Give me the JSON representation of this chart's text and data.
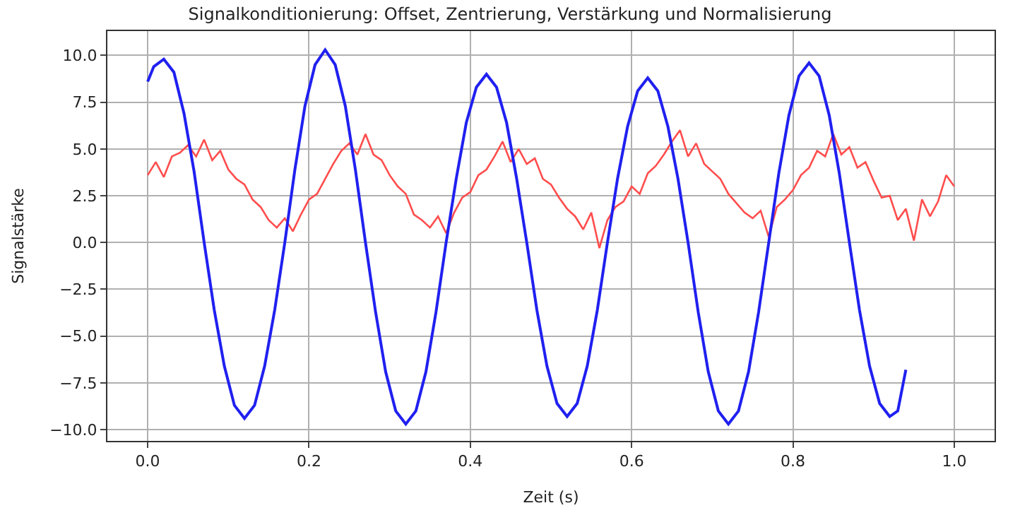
{
  "chart_data": {
    "type": "line",
    "title": "Signalkonditionierung: Offset, Zentrierung, Verstärkung und Normalisierung",
    "xlabel": "Zeit (s)",
    "ylabel": "Signalstärke",
    "xlim": [
      -0.05,
      1.05
    ],
    "ylim": [
      -10.6,
      11.3
    ],
    "xticks": [
      {
        "value": 0,
        "label": "0.0"
      },
      {
        "value": 0.2,
        "label": "0.2"
      },
      {
        "value": 0.4,
        "label": "0.4"
      },
      {
        "value": 0.6,
        "label": "0.6"
      },
      {
        "value": 0.8,
        "label": "0.8"
      },
      {
        "value": 1.0,
        "label": "1.0"
      }
    ],
    "yticks": [
      {
        "value": -10,
        "label": "−10.0"
      },
      {
        "value": -7.5,
        "label": "−7.5"
      },
      {
        "value": -5,
        "label": "−5.0"
      },
      {
        "value": -2.5,
        "label": "−2.5"
      },
      {
        "value": 0,
        "label": "0.0"
      },
      {
        "value": 2.5,
        "label": "2.5"
      },
      {
        "value": 5,
        "label": "5.0"
      },
      {
        "value": 7.5,
        "label": "7.5"
      },
      {
        "value": 10,
        "label": "10.0"
      }
    ],
    "grid": true,
    "marker": "none",
    "line_style": "solid",
    "series": [
      {
        "color": "#ff4d4d",
        "x": [
          0.0,
          0.01,
          0.02,
          0.03,
          0.04,
          0.05,
          0.06,
          0.07,
          0.08,
          0.09,
          0.1,
          0.11,
          0.12,
          0.13,
          0.14,
          0.15,
          0.16,
          0.17,
          0.18,
          0.19,
          0.2,
          0.21,
          0.22,
          0.23,
          0.24,
          0.25,
          0.26,
          0.27,
          0.28,
          0.29,
          0.3,
          0.31,
          0.32,
          0.33,
          0.34,
          0.35,
          0.36,
          0.37,
          0.38,
          0.39,
          0.4,
          0.41,
          0.42,
          0.43,
          0.44,
          0.45,
          0.46,
          0.47,
          0.48,
          0.49,
          0.5,
          0.51,
          0.52,
          0.53,
          0.54,
          0.55,
          0.56,
          0.57,
          0.58,
          0.59,
          0.6,
          0.61,
          0.62,
          0.63,
          0.64,
          0.65,
          0.66,
          0.67,
          0.68,
          0.69,
          0.7,
          0.71,
          0.72,
          0.73,
          0.74,
          0.75,
          0.76,
          0.77,
          0.78,
          0.79,
          0.8,
          0.81,
          0.82,
          0.83,
          0.84,
          0.85,
          0.86,
          0.87,
          0.88,
          0.89,
          0.9,
          0.91,
          0.92,
          0.93,
          0.94,
          0.95,
          0.96,
          0.97,
          0.98,
          0.99,
          1.0
        ],
        "values": [
          3.6,
          4.3,
          3.5,
          4.6,
          4.8,
          5.2,
          4.6,
          5.5,
          4.4,
          4.9,
          3.9,
          3.4,
          3.1,
          2.3,
          1.9,
          1.2,
          0.8,
          1.3,
          0.6,
          1.5,
          2.3,
          2.6,
          3.4,
          4.2,
          4.9,
          5.3,
          4.7,
          5.8,
          4.7,
          4.4,
          3.6,
          3.0,
          2.6,
          1.5,
          1.2,
          0.8,
          1.4,
          0.5,
          1.6,
          2.4,
          2.7,
          3.6,
          3.9,
          4.6,
          5.4,
          4.3,
          5.0,
          4.2,
          4.5,
          3.4,
          3.1,
          2.4,
          1.8,
          1.4,
          0.7,
          1.6,
          -0.3,
          1.2,
          1.9,
          2.2,
          3.0,
          2.6,
          3.7,
          4.1,
          4.7,
          5.4,
          6.0,
          4.6,
          5.3,
          4.2,
          3.8,
          3.4,
          2.6,
          2.1,
          1.6,
          1.3,
          1.7,
          0.3,
          1.9,
          2.3,
          2.8,
          3.6,
          4.0,
          4.9,
          4.6,
          5.8,
          4.7,
          5.1,
          4.0,
          4.3,
          3.3,
          2.4,
          2.5,
          1.2,
          1.8,
          0.1,
          2.3,
          1.4,
          2.2,
          3.6,
          3.0
        ]
      },
      {
        "color": "#2020f0",
        "x": [
          0,
          0.0075,
          0.02,
          0.0325,
          0.045,
          0.0575,
          0.07,
          0.0825,
          0.095,
          0.1075,
          0.12,
          0.1325,
          0.145,
          0.1575,
          0.17,
          0.1825,
          0.195,
          0.2075,
          0.22,
          0.2325,
          0.245,
          0.2575,
          0.27,
          0.2825,
          0.295,
          0.3075,
          0.32,
          0.3325,
          0.345,
          0.3575,
          0.37,
          0.3825,
          0.395,
          0.4075,
          0.42,
          0.4325,
          0.445,
          0.4575,
          0.47,
          0.4825,
          0.495,
          0.5075,
          0.52,
          0.5325,
          0.545,
          0.5575,
          0.57,
          0.5825,
          0.595,
          0.6075,
          0.62,
          0.6325,
          0.645,
          0.6575,
          0.67,
          0.6825,
          0.695,
          0.7075,
          0.72,
          0.7325,
          0.745,
          0.7575,
          0.77,
          0.7825,
          0.795,
          0.8075,
          0.82,
          0.8325,
          0.845,
          0.8575,
          0.87,
          0.8825,
          0.895,
          0.9075,
          0.92,
          0.93,
          0.94
        ],
        "values": [
          8.6,
          9.4,
          9.8,
          9.1,
          6.9,
          3.8,
          0.0,
          -3.6,
          -6.6,
          -8.7,
          -9.4,
          -8.7,
          -6.6,
          -3.6,
          0.0,
          3.9,
          7.3,
          9.5,
          10.3,
          9.5,
          7.3,
          3.9,
          0.0,
          -3.7,
          -6.9,
          -9.0,
          -9.7,
          -9.0,
          -6.9,
          -3.7,
          0.0,
          3.4,
          6.4,
          8.3,
          9.0,
          8.3,
          6.4,
          3.4,
          0.0,
          -3.6,
          -6.6,
          -8.6,
          -9.3,
          -8.6,
          -6.6,
          -3.6,
          0.0,
          3.4,
          6.2,
          8.1,
          8.8,
          8.1,
          6.2,
          3.4,
          0.0,
          -3.7,
          -6.9,
          -9.0,
          -9.7,
          -9.0,
          -6.9,
          -3.7,
          0.0,
          3.7,
          6.8,
          8.9,
          9.6,
          8.9,
          6.8,
          3.7,
          0.0,
          -3.6,
          -6.6,
          -8.6,
          -9.3,
          -9.0,
          -6.8
        ]
      }
    ]
  }
}
